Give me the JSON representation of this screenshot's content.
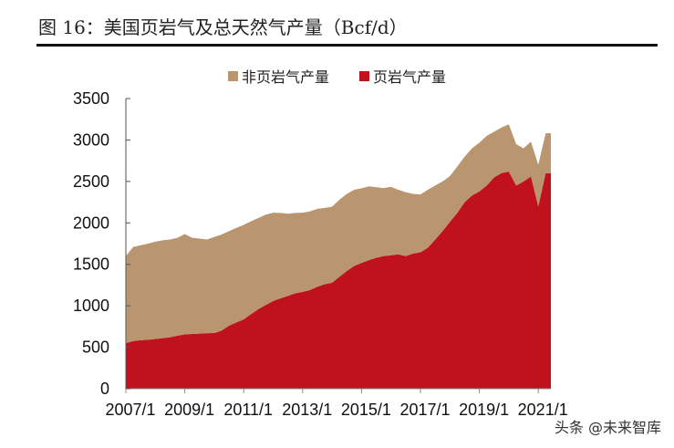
{
  "chart_data": {
    "type": "area",
    "stacked": true,
    "title": "图 16：美国页岩气及总天然气产量（Bcf/d）",
    "legend_position": "top",
    "grid": false,
    "xlabel": "",
    "ylabel": "",
    "ylim": [
      0,
      3500
    ],
    "yticks": [
      "0",
      "500",
      "1000",
      "1500",
      "2000",
      "2500",
      "3000",
      "3500"
    ],
    "xticks": [
      "2007/1",
      "2009/1",
      "2011/1",
      "2013/1",
      "2015/1",
      "2017/1",
      "2019/1",
      "2021/1"
    ],
    "x": [
      "2007/1",
      "2007/4",
      "2007/7",
      "2007/10",
      "2008/1",
      "2008/4",
      "2008/7",
      "2008/10",
      "2009/1",
      "2009/4",
      "2009/7",
      "2009/10",
      "2010/1",
      "2010/4",
      "2010/7",
      "2010/10",
      "2011/1",
      "2011/4",
      "2011/7",
      "2011/10",
      "2012/1",
      "2012/4",
      "2012/7",
      "2012/10",
      "2013/1",
      "2013/4",
      "2013/7",
      "2013/10",
      "2014/1",
      "2014/4",
      "2014/7",
      "2014/10",
      "2015/1",
      "2015/4",
      "2015/7",
      "2015/10",
      "2016/1",
      "2016/4",
      "2016/7",
      "2016/10",
      "2017/1",
      "2017/4",
      "2017/7",
      "2017/10",
      "2018/1",
      "2018/4",
      "2018/7",
      "2018/10",
      "2019/1",
      "2019/4",
      "2019/7",
      "2019/10",
      "2020/1",
      "2020/4",
      "2020/7",
      "2020/10",
      "2021/1",
      "2021/4"
    ],
    "series": [
      {
        "name": "页岩气产量",
        "color": "#C0111F",
        "values": [
          550,
          575,
          585,
          590,
          600,
          610,
          620,
          640,
          655,
          660,
          665,
          670,
          672,
          700,
          760,
          800,
          837,
          900,
          960,
          1010,
          1058,
          1090,
          1120,
          1150,
          1168,
          1190,
          1230,
          1260,
          1278,
          1350,
          1420,
          1480,
          1517,
          1550,
          1580,
          1600,
          1609,
          1620,
          1600,
          1630,
          1645,
          1700,
          1800,
          1900,
          2013,
          2120,
          2250,
          2330,
          2380,
          2450,
          2550,
          2600,
          2619,
          2450,
          2500,
          2560,
          2200,
          2600
        ]
      },
      {
        "name": "非页岩气产量",
        "color": "#B9966F",
        "values": [
          1050,
          1135,
          1145,
          1160,
          1174,
          1180,
          1180,
          1180,
          1211,
          1160,
          1145,
          1130,
          1158,
          1160,
          1140,
          1140,
          1139,
          1120,
          1100,
          1090,
          1065,
          1030,
          990,
          970,
          955,
          950,
          940,
          920,
          918,
          930,
          930,
          920,
          900,
          890,
          850,
          820,
          826,
          780,
          770,
          720,
          698,
          700,
          650,
          600,
          551,
          560,
          550,
          570,
          588,
          600,
          550,
          550,
          569,
          500,
          400,
          420,
          500,
          480
        ]
      }
    ]
  },
  "legend": {
    "non_shale": "非页岩气产量",
    "shale": "页岩气产量"
  },
  "watermark": "头条 @未来智库"
}
